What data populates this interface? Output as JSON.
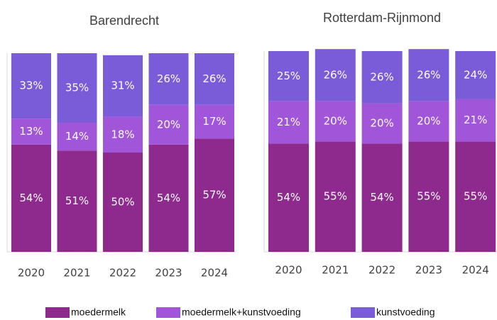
{
  "chart_data": [
    {
      "type": "bar",
      "stacked": true,
      "title": "Barendrecht",
      "categories": [
        "2020",
        "2021",
        "2022",
        "2023",
        "2024"
      ],
      "ylim": [
        0,
        100
      ],
      "series": [
        {
          "name": "moedermelk",
          "color": "#8e2a8e",
          "values": [
            54,
            51,
            50,
            54,
            57
          ],
          "value_labels": [
            "54%",
            "51%",
            "50%",
            "54%",
            "57%"
          ]
        },
        {
          "name": "moedermelk+kunstvoeding",
          "color": "#a155d8",
          "values": [
            13,
            14,
            18,
            20,
            17
          ],
          "value_labels": [
            "13%",
            "14%",
            "18%",
            "20%",
            "17%"
          ]
        },
        {
          "name": "kunstvoeding",
          "color": "#7a5cd8",
          "values": [
            33,
            35,
            31,
            26,
            26
          ],
          "value_labels": [
            "33%",
            "35%",
            "31%",
            "26%",
            "26%"
          ]
        }
      ]
    },
    {
      "type": "bar",
      "stacked": true,
      "title": "Rotterdam-Rijnmond",
      "categories": [
        "2020",
        "2021",
        "2022",
        "2023",
        "2024"
      ],
      "ylim": [
        0,
        100
      ],
      "series": [
        {
          "name": "moedermelk",
          "color": "#8e2a8e",
          "values": [
            54,
            55,
            54,
            55,
            55
          ],
          "value_labels": [
            "54%",
            "55%",
            "54%",
            "55%",
            "55%"
          ]
        },
        {
          "name": "moedermelk+kunstvoeding",
          "color": "#a155d8",
          "values": [
            21,
            20,
            20,
            20,
            21
          ],
          "value_labels": [
            "21%",
            "20%",
            "20%",
            "20%",
            "21%"
          ]
        },
        {
          "name": "kunstvoeding",
          "color": "#7a5cd8",
          "values": [
            25,
            26,
            26,
            26,
            24
          ],
          "value_labels": [
            "25%",
            "26%",
            "26%",
            "26%",
            "24%"
          ]
        }
      ]
    }
  ]
}
